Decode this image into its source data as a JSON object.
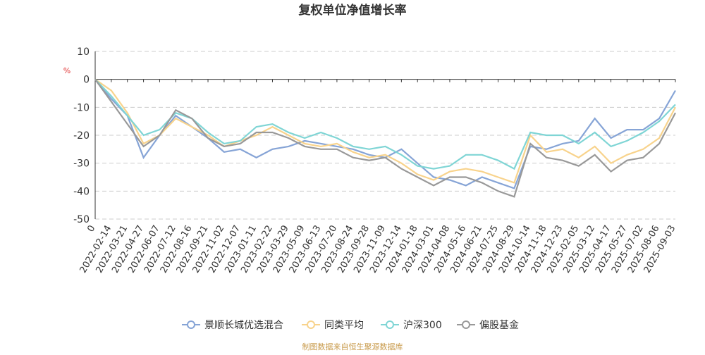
{
  "chart_data": {
    "type": "line",
    "title": "复权单位净值增长率",
    "y_label": "%",
    "source": "制图数据来自恒生聚源数据库",
    "categories": [
      "0",
      "2022-02-14",
      "2022-03-21",
      "2022-04-27",
      "2022-06-07",
      "2022-07-12",
      "2022-08-16",
      "2022-09-21",
      "2022-11-02",
      "2022-12-07",
      "2023-01-11",
      "2023-02-22",
      "2023-03-29",
      "2023-05-09",
      "2023-06-13",
      "2023-07-20",
      "2023-08-24",
      "2023-09-28",
      "2023-11-09",
      "2023-12-14",
      "2024-01-18",
      "2024-03-01",
      "2024-04-08",
      "2024-05-16",
      "2024-06-21",
      "2024-07-25",
      "2024-08-29",
      "2024-10-14",
      "2024-11-18",
      "2024-12-23",
      "2025-02-05",
      "2025-03-12",
      "2025-04-17",
      "2025-05-27",
      "2025-07-02",
      "2025-08-06",
      "2025-09-03"
    ],
    "series": [
      {
        "name": "景顺长城优选混合",
        "color": "#86a4d6",
        "values": [
          0,
          -7,
          -13,
          -28,
          -20,
          -13,
          -17,
          -21,
          -26,
          -25,
          -28,
          -25,
          -24,
          -22,
          -23,
          -24,
          -25,
          -27,
          -28,
          -25,
          -30,
          -35,
          -36,
          -38,
          -35,
          -37,
          -39,
          -24,
          -25,
          -23,
          -22,
          -14,
          -21,
          -18,
          -18,
          -14,
          -4
        ]
      },
      {
        "name": "同类平均",
        "color": "#f8d38c",
        "values": [
          0,
          -4,
          -12,
          -23,
          -20,
          -14,
          -17,
          -20,
          -24,
          -22,
          -20,
          -17,
          -20,
          -23,
          -24,
          -23,
          -26,
          -28,
          -27,
          -30,
          -34,
          -36,
          -33,
          -32,
          -33,
          -35,
          -37,
          -20,
          -26,
          -25,
          -28,
          -24,
          -30,
          -27,
          -25,
          -21,
          -10
        ]
      },
      {
        "name": "沪深300",
        "color": "#7fd5d5",
        "values": [
          0,
          -6,
          -13,
          -20,
          -18,
          -12,
          -14,
          -19,
          -23,
          -22,
          -17,
          -16,
          -19,
          -21,
          -19,
          -21,
          -24,
          -25,
          -24,
          -27,
          -31,
          -32,
          -31,
          -27,
          -27,
          -29,
          -32,
          -19,
          -20,
          -20,
          -23,
          -19,
          -24,
          -22,
          -19,
          -15,
          -9
        ]
      },
      {
        "name": "偏股基金",
        "color": "#999999",
        "values": [
          0,
          -8,
          -16,
          -24,
          -20,
          -11,
          -14,
          -21,
          -24,
          -23,
          -19,
          -19,
          -21,
          -24,
          -25,
          -25,
          -28,
          -29,
          -28,
          -32,
          -35,
          -38,
          -35,
          -35,
          -37,
          -40,
          -42,
          -23,
          -28,
          -29,
          -31,
          -27,
          -33,
          -29,
          -28,
          -23,
          -12
        ]
      }
    ],
    "ylim": [
      -50,
      10
    ],
    "yticks": [
      10,
      0,
      -10,
      -20,
      -30,
      -40,
      -50
    ],
    "grid": true
  }
}
